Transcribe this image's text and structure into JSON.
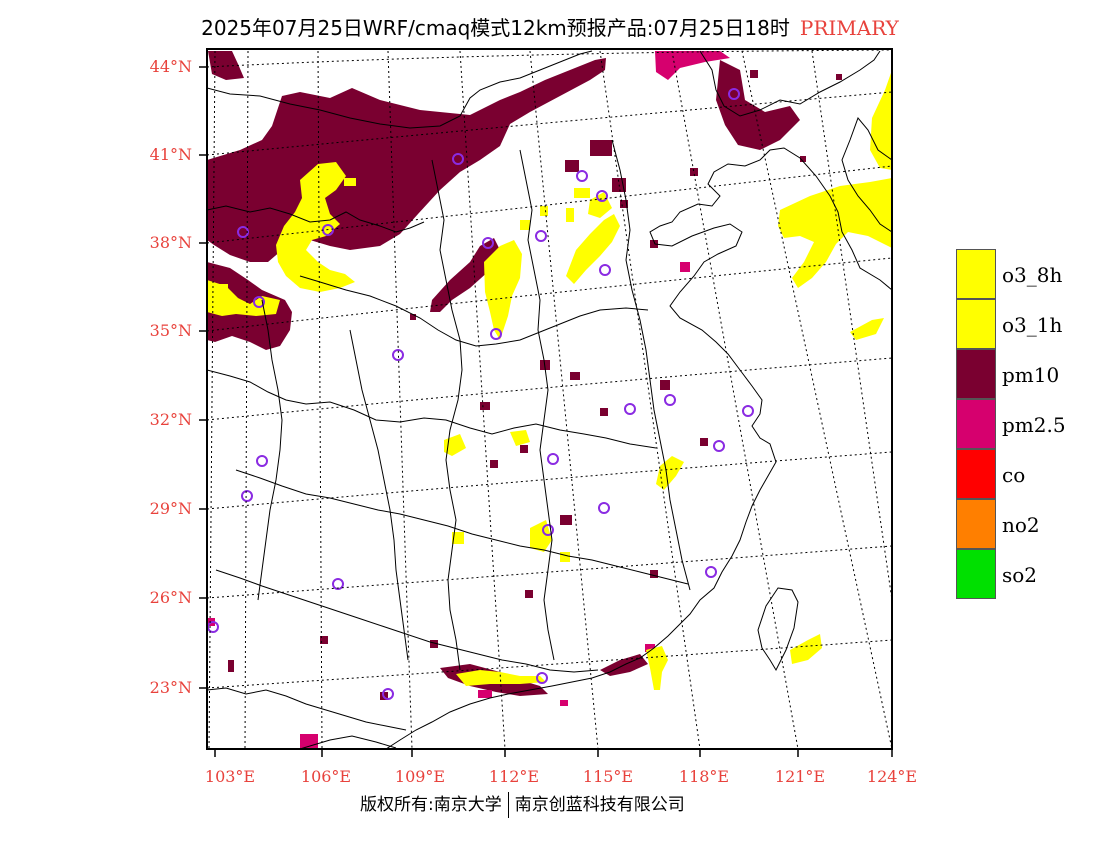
{
  "header": {
    "title": "2025年07月25日WRF/cmaq模式12km预报产品:07月25日18时",
    "tag": "PRIMARY",
    "tag_color": "#e8423c"
  },
  "map": {
    "frame_color": "#000000",
    "label_color": "#e8423c",
    "lon_labels": [
      "103°E",
      "106°E",
      "109°E",
      "112°E",
      "115°E",
      "118°E",
      "121°E",
      "124°E"
    ],
    "lat_labels": [
      "44°N",
      "41°N",
      "38°N",
      "35°N",
      "32°N",
      "29°N",
      "26°N",
      "23°N"
    ],
    "polluted_areas": [
      {
        "pollutant": "pm10",
        "region": "northern Inner Mongolia / Ningxia band"
      },
      {
        "pollutant": "o3_8h",
        "region": "Shanxi / Hebei / Shandong patches"
      },
      {
        "pollutant": "o3_8h",
        "region": "Yellow Sea / Korean Peninsula"
      },
      {
        "pollutant": "pm2.5",
        "region": "northern border near 44°N"
      }
    ],
    "station_marker_color": "#8a2be2"
  },
  "legend": {
    "items": [
      {
        "label": "o3_8h",
        "color": "#ffff00"
      },
      {
        "label": "o3_1h",
        "color": "#ffff00"
      },
      {
        "label": "pm10",
        "color": "#7a0030"
      },
      {
        "label": "pm2.5",
        "color": "#d6006e"
      },
      {
        "label": "co",
        "color": "#ff0000"
      },
      {
        "label": "no2",
        "color": "#ff7f00"
      },
      {
        "label": "so2",
        "color": "#00e000"
      }
    ]
  },
  "footer": {
    "left": "版权所有:南京大学",
    "right": "南京创蓝科技有限公司"
  }
}
